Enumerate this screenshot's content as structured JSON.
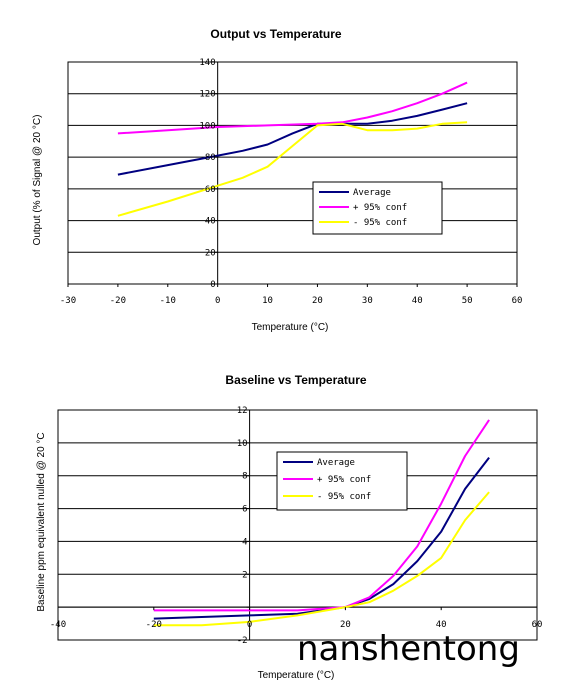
{
  "chart_data": [
    {
      "type": "line",
      "title": "Output vs Temperature",
      "xlabel": "Temperature (°C)",
      "ylabel": "Output (% of Signal @ 20 °C)",
      "xlim": [
        -30,
        60
      ],
      "ylim": [
        0,
        140
      ],
      "xticks": [
        -30,
        -20,
        -10,
        0,
        10,
        20,
        30,
        40,
        50,
        60
      ],
      "yticks": [
        0,
        20,
        40,
        60,
        80,
        100,
        120,
        140
      ],
      "xtick_labels": [
        "-30",
        "-20",
        "-10",
        "0",
        "10",
        "20",
        "30",
        "40",
        "50",
        "60"
      ],
      "ytick_labels": [
        "0",
        "20",
        "40",
        "60",
        "80",
        "100",
        "120",
        "140"
      ],
      "grid": "horizontal",
      "legend_position": "lower-right",
      "series": [
        {
          "name": "Average",
          "color": "#000080",
          "x": [
            -20,
            -10,
            0,
            5,
            10,
            15,
            20,
            25,
            30,
            35,
            40,
            45,
            50
          ],
          "y": [
            69,
            75,
            81,
            84,
            88,
            95,
            101,
            101,
            101,
            103,
            106,
            110,
            114
          ]
        },
        {
          "name": "+ 95% conf",
          "color": "#ff00ff",
          "x": [
            -20,
            -10,
            0,
            10,
            20,
            25,
            30,
            35,
            40,
            45,
            50
          ],
          "y": [
            95,
            97,
            99,
            100,
            101,
            102,
            105,
            109,
            114,
            120,
            127
          ]
        },
        {
          "name": "- 95% conf",
          "color": "#ffff00",
          "x": [
            -20,
            -10,
            0,
            5,
            10,
            15,
            20,
            25,
            30,
            35,
            40,
            45,
            50
          ],
          "y": [
            43,
            52,
            62,
            67,
            74,
            87,
            100,
            101,
            97,
            97,
            98,
            101,
            102
          ]
        }
      ]
    },
    {
      "type": "line",
      "title": "Baseline vs Temperature",
      "xlabel": "Temperature (°C)",
      "ylabel": "Baseline ppm equivalent nulled @ 20 °C",
      "xlim": [
        -40,
        60
      ],
      "ylim": [
        -2,
        12
      ],
      "xticks": [
        -40,
        -20,
        0,
        20,
        40,
        60
      ],
      "yticks": [
        -2,
        0,
        2,
        4,
        6,
        8,
        10,
        12
      ],
      "xtick_labels": [
        "-40",
        "-20",
        "0",
        "20",
        "40",
        "60"
      ],
      "ytick_labels": [
        "-2",
        "",
        "2",
        "4",
        "6",
        "8",
        "10",
        "12"
      ],
      "grid": "horizontal",
      "legend_position": "top-center",
      "series": [
        {
          "name": "Average",
          "color": "#000080",
          "x": [
            -20,
            -10,
            0,
            10,
            20,
            25,
            30,
            35,
            40,
            45,
            50
          ],
          "y": [
            -0.7,
            -0.6,
            -0.5,
            -0.4,
            0,
            0.5,
            1.4,
            2.8,
            4.6,
            7.2,
            9.1
          ]
        },
        {
          "name": "+ 95% conf",
          "color": "#ff00ff",
          "x": [
            -20,
            -10,
            0,
            10,
            20,
            25,
            30,
            35,
            40,
            45,
            50
          ],
          "y": [
            -0.2,
            -0.2,
            -0.2,
            -0.2,
            0,
            0.6,
            1.9,
            3.7,
            6.3,
            9.2,
            11.4
          ]
        },
        {
          "name": "- 95% conf",
          "color": "#ffff00",
          "x": [
            -20,
            -10,
            0,
            10,
            20,
            25,
            30,
            35,
            40,
            45,
            50
          ],
          "y": [
            -1.1,
            -1.1,
            -0.9,
            -0.5,
            0,
            0.3,
            1.0,
            1.9,
            3.0,
            5.3,
            7.0
          ]
        }
      ]
    }
  ],
  "watermark": "nanshentong"
}
